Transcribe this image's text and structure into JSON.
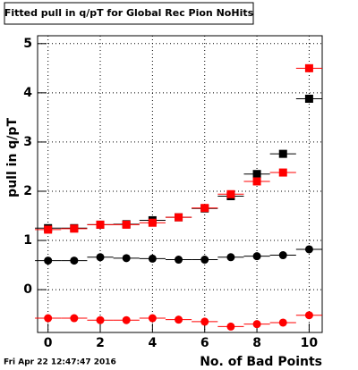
{
  "chart_data": {
    "type": "scatter",
    "title": "Fitted pull in q/pT for Global Rec Pion NoHits",
    "x_label": "No. of Bad Points",
    "y_label": "pull in q/pT",
    "timestamp": "Fri Apr 22 12:47:47 2016",
    "x": [
      0,
      1,
      2,
      3,
      4,
      5,
      6,
      7,
      8,
      9,
      10
    ],
    "xerr": 0.5,
    "series": [
      {
        "color": "#000000",
        "marker": "square",
        "values": [
          1.25,
          1.25,
          1.32,
          1.33,
          1.41,
          1.47,
          1.65,
          1.9,
          2.35,
          2.76,
          3.88
        ]
      },
      {
        "color": "#ff0000",
        "marker": "square",
        "values": [
          1.22,
          1.24,
          1.32,
          1.32,
          1.36,
          1.47,
          1.66,
          1.94,
          2.2,
          2.38,
          4.5
        ]
      },
      {
        "color": "#000000",
        "marker": "circle",
        "values": [
          0.59,
          0.59,
          0.66,
          0.64,
          0.63,
          0.61,
          0.61,
          0.66,
          0.68,
          0.7,
          0.82
        ]
      },
      {
        "color": "#ff0000",
        "marker": "circle",
        "values": [
          -0.58,
          -0.58,
          -0.62,
          -0.62,
          -0.58,
          -0.61,
          -0.65,
          -0.75,
          -0.7,
          -0.67,
          -0.52
        ]
      }
    ],
    "xlim": [
      -0.4,
      10.5
    ],
    "xticks": [
      0,
      2,
      4,
      6,
      8,
      10
    ],
    "ylim": [
      -0.87,
      5.16
    ],
    "yticks": [
      0,
      1,
      2,
      3,
      4,
      5
    ],
    "grid": true
  }
}
